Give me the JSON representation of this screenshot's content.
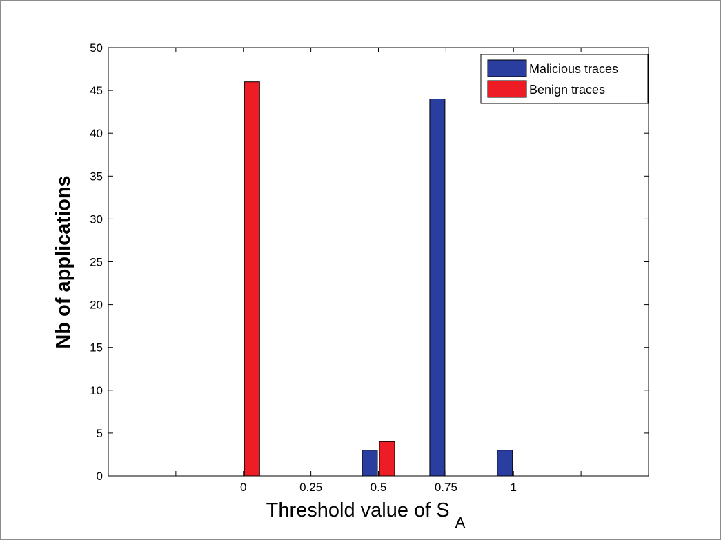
{
  "chart_data": {
    "type": "bar",
    "categories": [
      "0",
      "0.25",
      "0.5",
      "0.75",
      "1"
    ],
    "series": [
      {
        "name": "Malicious traces",
        "values": [
          0,
          0,
          3,
          44,
          3
        ],
        "color": "#2a3ea0"
      },
      {
        "name": "Benign traces",
        "values": [
          46,
          0,
          4,
          0,
          0
        ],
        "color": "#ee1c24"
      }
    ],
    "xlabel": "Threshold value of S",
    "xlabel_subscript": "A",
    "ylabel": "Nb of applications",
    "ylim": [
      0,
      50
    ],
    "yticks": [
      "0",
      "5",
      "10",
      "15",
      "20",
      "25",
      "30",
      "35",
      "40",
      "45",
      "50"
    ],
    "xlim": [
      -0.5,
      1.5
    ],
    "grid": false,
    "legend_position": "top-right"
  }
}
